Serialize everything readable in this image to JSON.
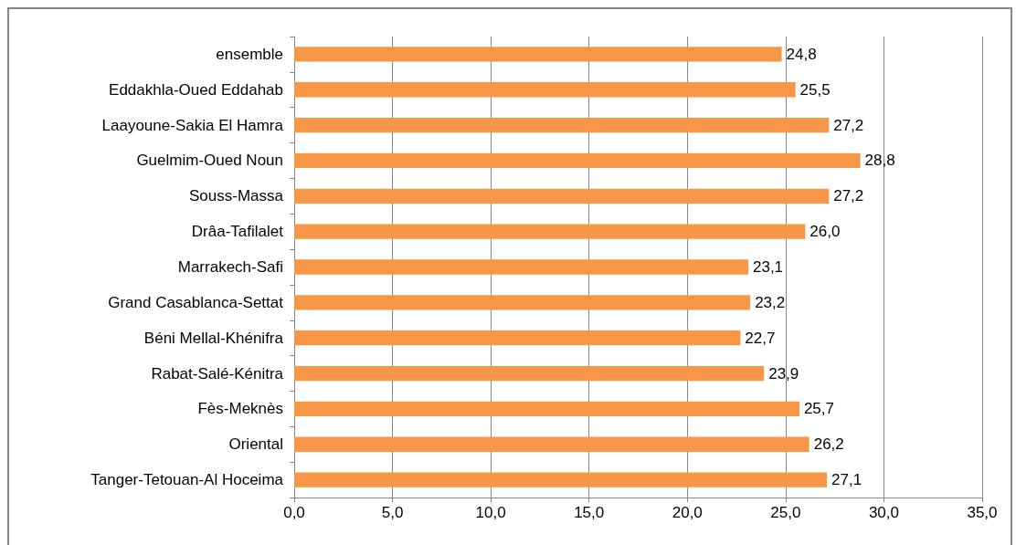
{
  "chart_data": {
    "type": "bar",
    "orientation": "horizontal",
    "categories": [
      "ensemble",
      "Eddakhla-Oued Eddahab",
      "Laayoune-Sakia El Hamra",
      "Guelmim-Oued Noun",
      "Souss-Massa",
      "Drâa-Tafilalet",
      "Marrakech-Safi",
      "Grand Casablanca-Settat",
      "Béni Mellal-Khénifra",
      "Rabat-Salé-Kénitra",
      "Fès-Meknès",
      "Oriental",
      "Tanger-Tetouan-Al Hoceima"
    ],
    "values": [
      24.8,
      25.5,
      27.2,
      28.8,
      27.2,
      26.0,
      23.1,
      23.2,
      22.7,
      23.9,
      25.7,
      26.2,
      27.1
    ],
    "value_labels": [
      "24,8",
      "25,5",
      "27,2",
      "28,8",
      "27,2",
      "26,0",
      "23,1",
      "23,2",
      "22,7",
      "23,9",
      "25,7",
      "26,2",
      "27,1"
    ],
    "color": "#f79646",
    "xlim": [
      0,
      35
    ],
    "xticks": [
      {
        "value": 0,
        "label": "0,0"
      },
      {
        "value": 5,
        "label": "5,0"
      },
      {
        "value": 10,
        "label": "10,0"
      },
      {
        "value": 15,
        "label": "15,0"
      },
      {
        "value": 20,
        "label": "20,0"
      },
      {
        "value": 25,
        "label": "25,0"
      },
      {
        "value": 30,
        "label": "30,0"
      },
      {
        "value": 35,
        "label": "35,0"
      }
    ],
    "grid": "x"
  }
}
